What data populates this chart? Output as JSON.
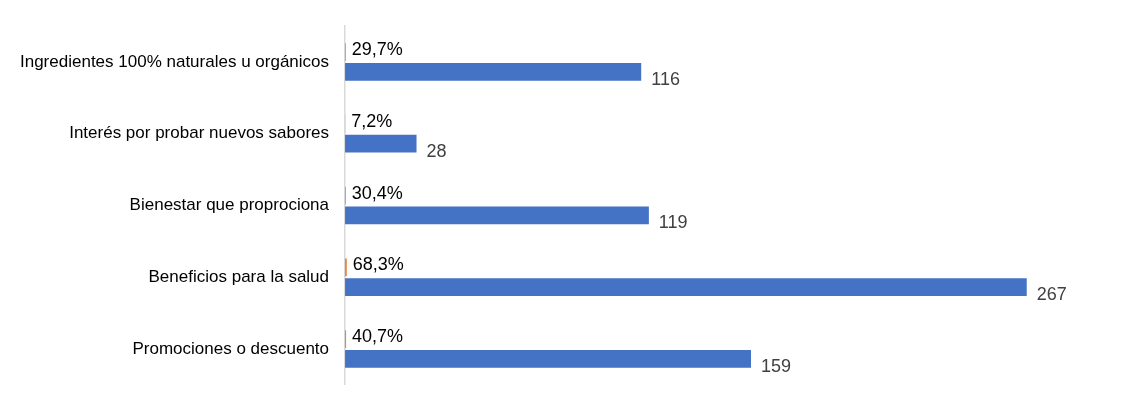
{
  "chart_data": {
    "type": "bar",
    "orientation": "horizontal",
    "categories": [
      "Ingredientes 100% naturales u orgánicos",
      "Interés por probar nuevos sabores",
      "Bienestar que proprociona",
      "Beneficios para la salud",
      "Promociones o descuento"
    ],
    "series": [
      {
        "color": "#ed7d31",
        "values": [
          0.297,
          0.072,
          0.304,
          0.683,
          0.407
        ],
        "value_labels": [
          "29,7%",
          "7,2%",
          "30,4%",
          "68,3%",
          "40,7%"
        ]
      },
      {
        "color": "#4472c4",
        "values": [
          116,
          28,
          119,
          267,
          159
        ],
        "value_labels": [
          "116",
          "28",
          "119",
          "267",
          "159"
        ]
      }
    ],
    "tick_labels": "y",
    "grid": false,
    "legend": false
  }
}
